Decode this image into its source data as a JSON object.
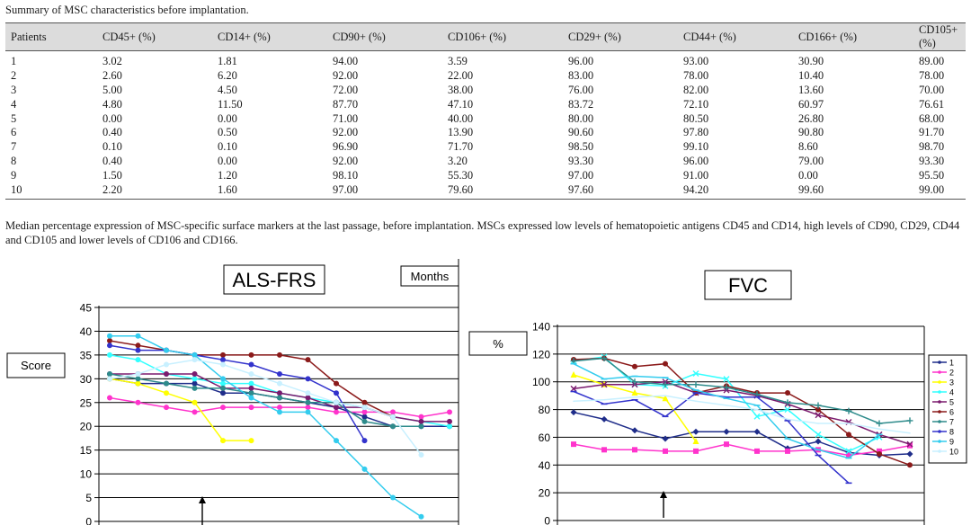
{
  "table": {
    "caption": "Summary of MSC characteristics before implantation.",
    "headers": [
      "Patients",
      "CD45+ (%)",
      "CD14+ (%)",
      "CD90+ (%)",
      "CD106+ (%)",
      "CD29+ (%)",
      "CD44+ (%)",
      "CD166+ (%)",
      "CD105+ (%)"
    ],
    "rows": [
      [
        "1",
        "3.02",
        "1.81",
        "94.00",
        "3.59",
        "96.00",
        "93.00",
        "30.90",
        "89.00"
      ],
      [
        "2",
        "2.60",
        "6.20",
        "92.00",
        "22.00",
        "83.00",
        "78.00",
        "10.40",
        "78.00"
      ],
      [
        "3",
        "5.00",
        "4.50",
        "72.00",
        "38.00",
        "76.00",
        "82.00",
        "13.60",
        "70.00"
      ],
      [
        "4",
        "4.80",
        "11.50",
        "87.70",
        "47.10",
        "83.72",
        "72.10",
        "60.97",
        "76.61"
      ],
      [
        "5",
        "0.00",
        "0.00",
        "71.00",
        "40.00",
        "80.00",
        "80.50",
        "26.80",
        "68.00"
      ],
      [
        "6",
        "0.40",
        "0.50",
        "92.00",
        "13.90",
        "90.60",
        "97.80",
        "90.80",
        "91.70"
      ],
      [
        "7",
        "0.10",
        "0.10",
        "96.90",
        "71.70",
        "98.50",
        "99.10",
        "8.60",
        "98.70"
      ],
      [
        "8",
        "0.40",
        "0.00",
        "92.00",
        "3.20",
        "93.30",
        "96.00",
        "79.00",
        "93.30"
      ],
      [
        "9",
        "1.50",
        "1.20",
        "98.10",
        "55.30",
        "97.00",
        "91.00",
        "0.00",
        "95.50"
      ],
      [
        "10",
        "2.20",
        "1.60",
        "97.00",
        "79.60",
        "97.60",
        "94.20",
        "99.60",
        "99.00"
      ]
    ],
    "footnote": "Median percentage expression of MSC-specific surface markers at the last passage, before implantation. MSCs expressed low levels of hematopoietic antigens CD45 and CD14, high levels of CD90, CD29, CD44 and CD105 and lower levels of CD106 and CD166."
  },
  "chart_data": [
    {
      "type": "line",
      "title": "ALS-FRS",
      "ylabel": "Score",
      "xlabel": "Months",
      "ylim": [
        0,
        45
      ],
      "yticks": [
        0,
        5,
        10,
        15,
        20,
        25,
        30,
        35,
        40,
        45
      ],
      "grid": true,
      "annotation": "arrow marking implantation",
      "series": [
        {
          "color": "#1f2d8a",
          "values": [
            30,
            29,
            29,
            29,
            27,
            27,
            26,
            25,
            24,
            22,
            20,
            20,
            20
          ]
        },
        {
          "color": "#ff33cc",
          "values": [
            26,
            25,
            24,
            23,
            24,
            24,
            24,
            24,
            23,
            23,
            23,
            22,
            23
          ]
        },
        {
          "color": "#ffff00",
          "values": [
            30,
            29,
            27,
            25,
            17,
            17
          ]
        },
        {
          "color": "#33ffff",
          "values": [
            35,
            34,
            31,
            30,
            29,
            29,
            27,
            26,
            25,
            24,
            22,
            21,
            20
          ]
        },
        {
          "color": "#7a1a6e",
          "values": [
            31,
            31,
            31,
            31,
            28,
            28,
            27,
            26,
            24,
            24,
            22,
            21,
            21
          ]
        },
        {
          "color": "#8b1a1a",
          "values": [
            38,
            37,
            36,
            35,
            35,
            35,
            35,
            34,
            29,
            25,
            22
          ]
        },
        {
          "color": "#2e8b8b",
          "values": [
            31,
            30,
            29,
            28,
            28,
            27,
            26,
            25,
            25,
            21,
            20,
            20
          ]
        },
        {
          "color": "#3333cc",
          "values": [
            37,
            36,
            36,
            35,
            34,
            33,
            31,
            30,
            27,
            17
          ]
        },
        {
          "color": "#33ccee",
          "values": [
            39,
            39,
            36,
            35,
            30,
            26,
            23,
            23,
            17,
            11,
            5,
            1
          ]
        },
        {
          "color": "#c8f0ff",
          "values": [
            30,
            31,
            33,
            34,
            33,
            31,
            29,
            27,
            25,
            24,
            22,
            14
          ]
        }
      ]
    },
    {
      "type": "line",
      "title": "FVC",
      "ylabel": "%",
      "ylim": [
        0,
        140
      ],
      "yticks": [
        0,
        20,
        40,
        60,
        80,
        100,
        120,
        140
      ],
      "grid": true,
      "legend": {
        "position": "right",
        "entries": [
          "1",
          "2",
          "3",
          "4",
          "5",
          "6",
          "7",
          "8",
          "9",
          "10"
        ]
      },
      "annotation": "arrow marking implantation",
      "series": [
        {
          "name": "1",
          "color": "#1f2d8a",
          "marker": "diamond",
          "values": [
            78,
            73,
            65,
            59,
            64,
            64,
            64,
            52,
            57,
            49,
            47,
            48
          ]
        },
        {
          "name": "2",
          "color": "#ff33cc",
          "marker": "square",
          "values": [
            55,
            51,
            51,
            50,
            50,
            55,
            50,
            50,
            51,
            47,
            50,
            54
          ]
        },
        {
          "name": "3",
          "color": "#ffff00",
          "marker": "triangle",
          "values": [
            105,
            98,
            92,
            88,
            57
          ]
        },
        {
          "name": "4",
          "color": "#33ffff",
          "marker": "x",
          "values": [
            115,
            118,
            98,
            97,
            106,
            102,
            75,
            80,
            62,
            50,
            60
          ]
        },
        {
          "name": "5",
          "color": "#7a1a6e",
          "marker": "x",
          "values": [
            95,
            98,
            98,
            100,
            92,
            94,
            90,
            84,
            76,
            71,
            62,
            55
          ]
        },
        {
          "name": "6",
          "color": "#8b1a1a",
          "marker": "circle",
          "values": [
            116,
            117,
            111,
            113,
            92,
            97,
            92,
            92,
            80,
            62,
            48,
            40
          ]
        },
        {
          "name": "7",
          "color": "#2e8b8b",
          "marker": "plus",
          "values": [
            115,
            117,
            100,
            98,
            98,
            96,
            91,
            85,
            83,
            79,
            70,
            72
          ]
        },
        {
          "name": "8",
          "color": "#3333cc",
          "marker": "dash",
          "values": [
            93,
            84,
            87,
            75,
            92,
            89,
            89,
            72,
            47,
            27
          ]
        },
        {
          "name": "9",
          "color": "#33ccee",
          "marker": "dash",
          "values": [
            113,
            102,
            104,
            103,
            94,
            88,
            83,
            59,
            51,
            45,
            62
          ]
        },
        {
          "name": "10",
          "color": "#c8f0ff",
          "marker": "none",
          "values": [
            86,
            87,
            89,
            90,
            86,
            83,
            80,
            73,
            70,
            70,
            66,
            63
          ]
        }
      ]
    }
  ]
}
